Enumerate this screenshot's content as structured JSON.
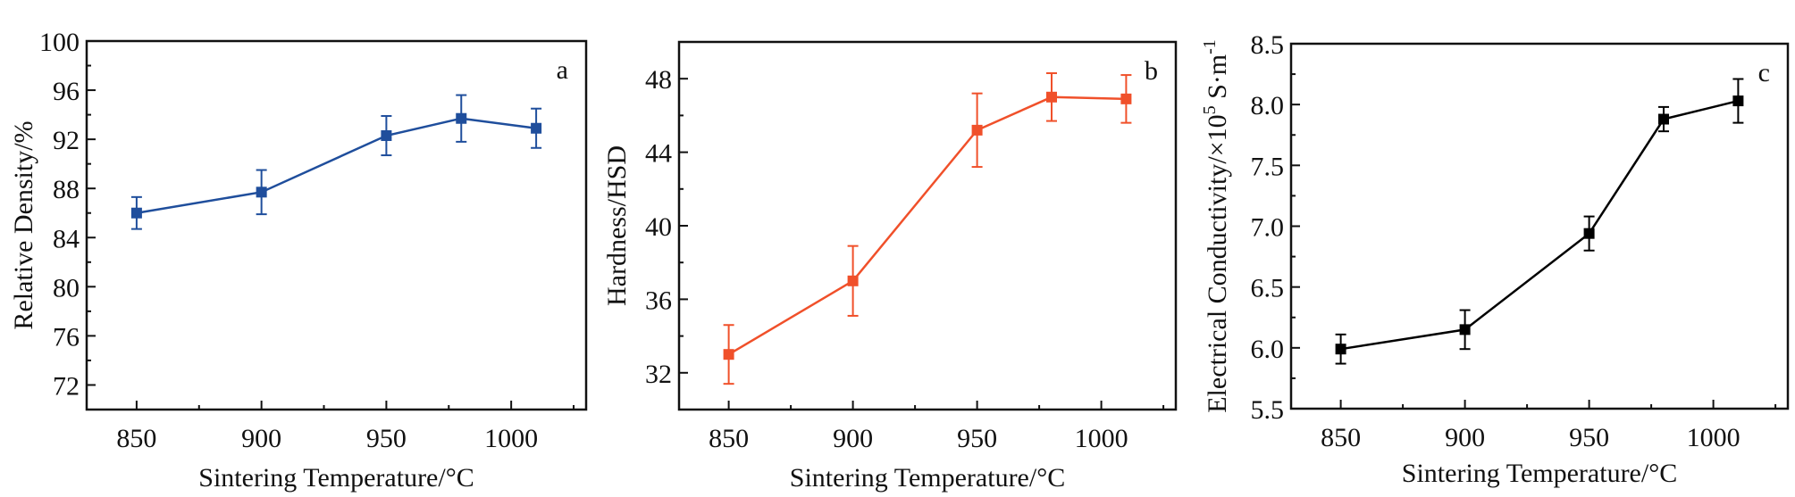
{
  "figure": {
    "panels": [
      "a",
      "b",
      "c"
    ]
  },
  "chart_data": [
    {
      "type": "line",
      "panel_label": "a",
      "title": "",
      "xlabel": "Sintering Temperature/°C",
      "ylabel": "Relative Density/%",
      "xlim": [
        830,
        1030
      ],
      "ylim": [
        70,
        100
      ],
      "x_major_ticks": [
        850,
        900,
        950,
        1000
      ],
      "x_minor_ticks": [
        875,
        925,
        975,
        1025
      ],
      "x_tick_labels": [
        "850",
        "900",
        "950",
        "1000"
      ],
      "y_major_ticks": [
        72,
        76,
        80,
        84,
        88,
        92,
        96,
        100
      ],
      "y_minor_ticks": [
        70,
        74,
        78,
        82,
        86,
        90,
        94,
        98
      ],
      "y_tick_labels": [
        "72",
        "76",
        "80",
        "84",
        "88",
        "92",
        "96",
        "100"
      ],
      "grid": false,
      "series": [
        {
          "name": "Relative Density",
          "color": "#1f4e9c",
          "marker": "square",
          "x": [
            850,
            900,
            950,
            980,
            1010
          ],
          "values": [
            86.0,
            87.7,
            92.3,
            93.7,
            92.9
          ],
          "errors": [
            1.3,
            1.8,
            1.6,
            1.9,
            1.6
          ]
        }
      ]
    },
    {
      "type": "line",
      "panel_label": "b",
      "title": "",
      "xlabel": "Sintering Temperature/°C",
      "ylabel": "Hardness/HSD",
      "xlim": [
        830,
        1030
      ],
      "ylim": [
        30,
        50
      ],
      "x_major_ticks": [
        850,
        900,
        950,
        1000
      ],
      "x_minor_ticks": [
        875,
        925,
        975,
        1025
      ],
      "x_tick_labels": [
        "850",
        "900",
        "950",
        "1000"
      ],
      "y_major_ticks": [
        32,
        36,
        40,
        44,
        48
      ],
      "y_minor_ticks": [
        30,
        34,
        38,
        42,
        46,
        50
      ],
      "y_tick_labels": [
        "32",
        "36",
        "40",
        "44",
        "48"
      ],
      "grid": false,
      "series": [
        {
          "name": "Hardness",
          "color": "#f0502a",
          "marker": "square",
          "x": [
            850,
            900,
            950,
            980,
            1010
          ],
          "values": [
            33.0,
            37.0,
            45.2,
            47.0,
            46.9
          ],
          "errors": [
            1.6,
            1.9,
            2.0,
            1.3,
            1.3
          ]
        }
      ]
    },
    {
      "type": "line",
      "panel_label": "c",
      "title": "",
      "xlabel": "Sintering Temperature/°C",
      "ylabel_main": "Electrical Conductivity/×10",
      "ylabel_exp": "5",
      "ylabel_unit": " S·m",
      "ylabel_unit_exp": "-1",
      "ylabel": "Electrical Conductivity/×10^5 S·m^-1",
      "xlim": [
        830,
        1030
      ],
      "ylim": [
        5.5,
        8.5
      ],
      "x_major_ticks": [
        850,
        900,
        950,
        1000
      ],
      "x_minor_ticks": [
        875,
        925,
        975,
        1025
      ],
      "x_tick_labels": [
        "850",
        "900",
        "950",
        "1000"
      ],
      "y_major_ticks": [
        5.5,
        6.0,
        6.5,
        7.0,
        7.5,
        8.0,
        8.5
      ],
      "y_minor_ticks": [
        5.75,
        6.25,
        6.75,
        7.25,
        7.75,
        8.25
      ],
      "y_tick_labels": [
        "5.5",
        "6.0",
        "6.5",
        "7.0",
        "7.5",
        "8.0",
        "8.5"
      ],
      "grid": false,
      "series": [
        {
          "name": "Electrical Conductivity",
          "color": "#000000",
          "marker": "square",
          "x": [
            850,
            900,
            950,
            980,
            1010
          ],
          "values": [
            5.99,
            6.15,
            6.94,
            7.88,
            8.03
          ],
          "errors": [
            0.12,
            0.16,
            0.14,
            0.1,
            0.18
          ]
        }
      ]
    }
  ]
}
